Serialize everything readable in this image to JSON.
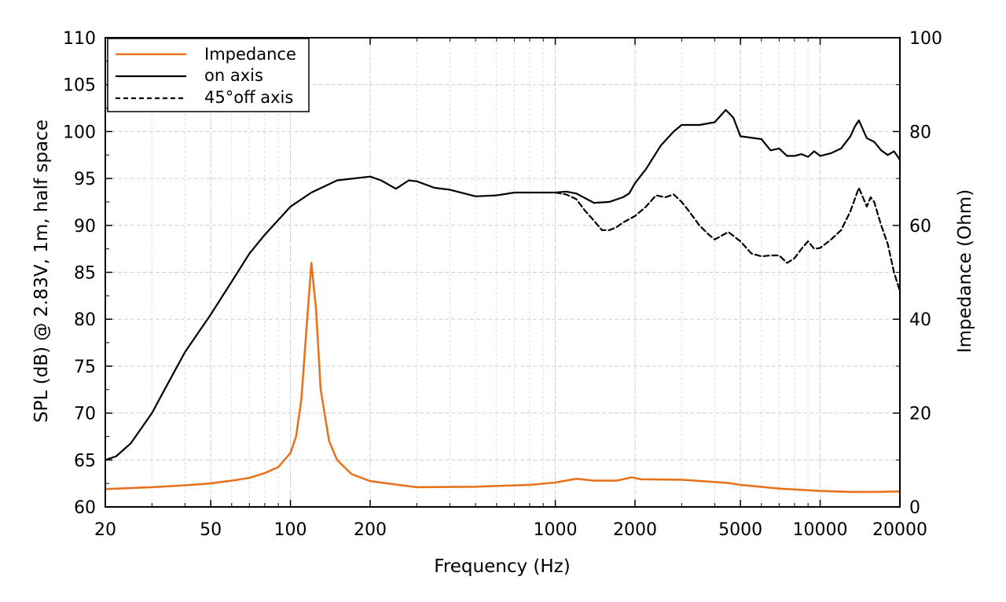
{
  "chart_data": {
    "type": "line",
    "xlabel": "Frequency (Hz)",
    "ylabel_left": "SPL (dB) @ 2.83V, 1m, half space",
    "ylabel_right": "Impedance (Ohm)",
    "x_scale": "log",
    "xlim": [
      20,
      20000
    ],
    "ylim_left": [
      60,
      110
    ],
    "ylim_right": [
      0,
      100
    ],
    "x_ticks": [
      20,
      50,
      100,
      200,
      1000,
      2000,
      5000,
      10000,
      20000
    ],
    "x_tick_labels": [
      "20",
      "50",
      "100",
      "200",
      "1000",
      "2000",
      "5000",
      "10000",
      "20000"
    ],
    "y_left_ticks": [
      60,
      65,
      70,
      75,
      80,
      85,
      90,
      95,
      100,
      105,
      110
    ],
    "y_left_tick_labels": [
      "60",
      "65",
      "70",
      "75",
      "80",
      "85",
      "90",
      "95",
      "100",
      "105",
      "110"
    ],
    "y_right_ticks": [
      0,
      20,
      40,
      60,
      80,
      100
    ],
    "y_right_tick_labels": [
      "0",
      "20",
      "40",
      "60",
      "80",
      "100"
    ],
    "grid": true,
    "legend_position": "top-left",
    "series": [
      {
        "name": "Impedance",
        "axis": "right",
        "color": "#E8731E",
        "style": "solid",
        "x": [
          20,
          30,
          40,
          50,
          60,
          70,
          80,
          90,
          100,
          105,
          110,
          115,
          120,
          125,
          130,
          140,
          150,
          170,
          200,
          300,
          500,
          800,
          1000,
          1200,
          1400,
          1700,
          1950,
          2100,
          3000,
          4500,
          5000,
          7000,
          10000,
          13000,
          16000,
          20000
        ],
        "y": [
          3.8,
          4.2,
          4.6,
          5.0,
          5.6,
          6.2,
          7.2,
          8.5,
          11.5,
          15.0,
          23.0,
          38.0,
          52.0,
          42.0,
          25.0,
          14.0,
          10.0,
          7.0,
          5.5,
          4.2,
          4.3,
          4.7,
          5.2,
          6.0,
          5.6,
          5.6,
          6.3,
          5.9,
          5.8,
          5.1,
          4.7,
          3.9,
          3.4,
          3.2,
          3.2,
          3.3
        ]
      },
      {
        "name": "on axis",
        "axis": "left",
        "color": "#000000",
        "style": "solid",
        "x": [
          20,
          22,
          25,
          30,
          35,
          40,
          50,
          60,
          70,
          80,
          100,
          120,
          150,
          200,
          220,
          250,
          280,
          300,
          350,
          400,
          500,
          600,
          700,
          800,
          1000,
          1100,
          1200,
          1400,
          1600,
          1800,
          1900,
          2000,
          2200,
          2500,
          2800,
          3000,
          3500,
          4000,
          4400,
          4700,
          5000,
          6000,
          6500,
          7000,
          7500,
          8000,
          8500,
          9000,
          9500,
          10000,
          11000,
          12000,
          13000,
          13500,
          14000,
          15000,
          16000,
          17000,
          18000,
          19000,
          20000
        ],
        "y": [
          65.0,
          65.4,
          66.8,
          70.0,
          73.5,
          76.5,
          80.5,
          84.0,
          87.0,
          89.0,
          92.0,
          93.5,
          94.8,
          95.2,
          94.8,
          93.9,
          94.8,
          94.7,
          94.0,
          93.8,
          93.1,
          93.2,
          93.5,
          93.5,
          93.5,
          93.6,
          93.4,
          92.4,
          92.5,
          93.0,
          93.4,
          94.5,
          96.0,
          98.5,
          100.0,
          100.7,
          100.7,
          101.0,
          102.3,
          101.5,
          99.5,
          99.2,
          98.0,
          98.2,
          97.4,
          97.4,
          97.6,
          97.3,
          97.9,
          97.4,
          97.7,
          98.2,
          99.5,
          100.5,
          101.2,
          99.3,
          98.9,
          98.0,
          97.5,
          97.9,
          97.0
        ]
      },
      {
        "name": "45°off axis",
        "axis": "left",
        "color": "#000000",
        "style": "dashed",
        "x": [
          1000,
          1100,
          1200,
          1300,
          1400,
          1500,
          1600,
          1700,
          1800,
          2000,
          2200,
          2400,
          2600,
          2800,
          3000,
          3200,
          3500,
          3800,
          4000,
          4500,
          5000,
          5500,
          6000,
          6500,
          7000,
          7500,
          8000,
          8500,
          9000,
          9500,
          10000,
          11000,
          12000,
          13000,
          14000,
          14500,
          15000,
          15500,
          16000,
          17000,
          18000,
          19000,
          20000
        ],
        "y": [
          93.5,
          93.3,
          92.8,
          91.5,
          90.5,
          89.5,
          89.5,
          89.8,
          90.3,
          91.0,
          92.0,
          93.2,
          93.0,
          93.3,
          92.5,
          91.5,
          90.0,
          89.0,
          88.5,
          89.3,
          88.3,
          87.0,
          86.7,
          86.8,
          86.8,
          86.0,
          86.5,
          87.5,
          88.3,
          87.5,
          87.6,
          88.5,
          89.5,
          91.5,
          94.0,
          93.0,
          92.0,
          93.0,
          92.5,
          90.0,
          88.0,
          85.0,
          83.0
        ]
      }
    ]
  }
}
